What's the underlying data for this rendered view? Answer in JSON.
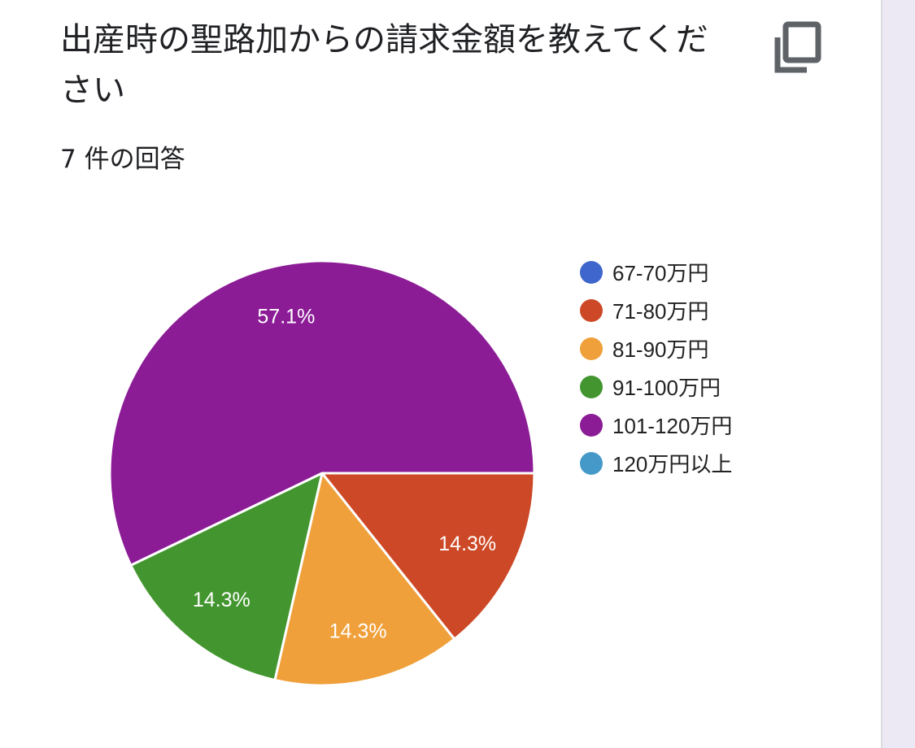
{
  "card": {
    "title": "出産時の聖路加からの請求金額を教えてください",
    "response_count": "7 件の回答",
    "copy_icon": "copy-icon"
  },
  "chart_data": {
    "type": "pie",
    "categories": [
      "67-70万円",
      "71-80万円",
      "81-90万円",
      "91-100万円",
      "101-120万円",
      "120万円以上"
    ],
    "values": [
      0,
      14.3,
      14.3,
      14.3,
      57.1,
      0
    ],
    "counts": [
      0,
      1,
      1,
      1,
      4,
      0
    ],
    "colors": [
      "#3f66cc",
      "#cc4826",
      "#f0a03a",
      "#43962f",
      "#8b1c96",
      "#4499c8"
    ],
    "slice_labels": [
      "",
      "14.3%",
      "14.3%",
      "14.3%",
      "57.1%",
      ""
    ],
    "legend_position": "right"
  }
}
